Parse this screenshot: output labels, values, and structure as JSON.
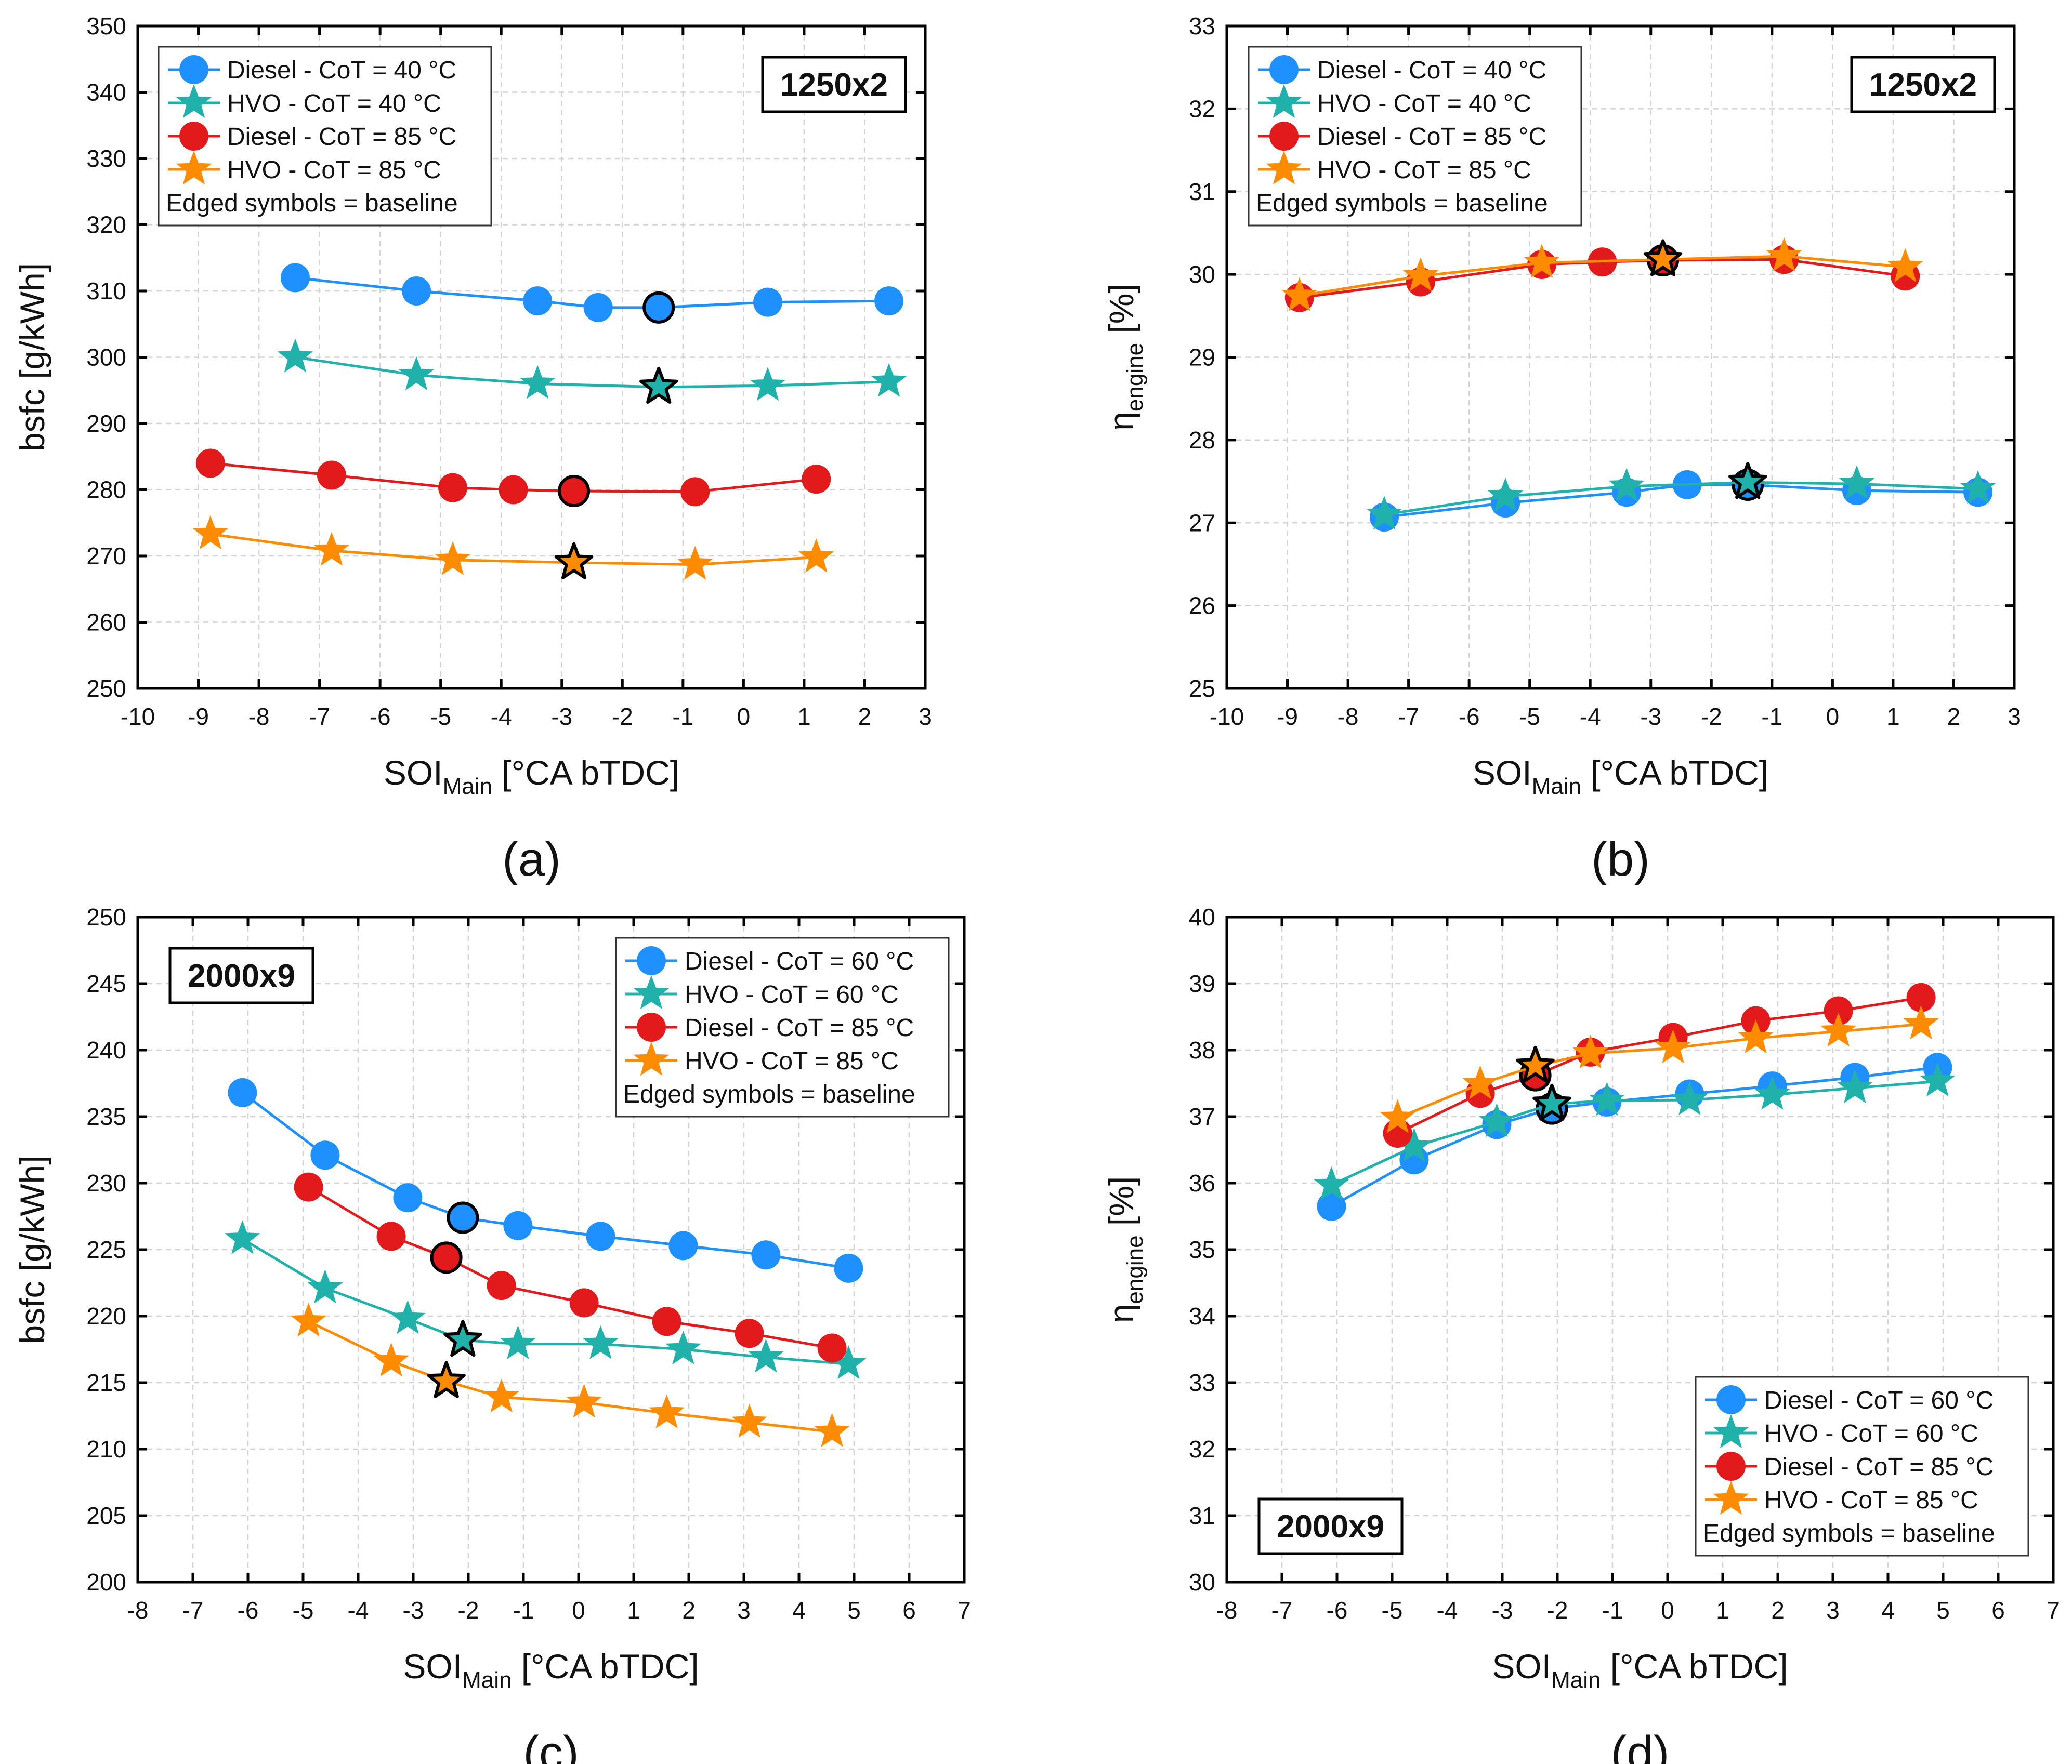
{
  "colors": {
    "diesel_40": "#1e90ff",
    "hvo_40": "#20b2aa",
    "diesel_85": "#e31a1c",
    "hvo_85": "#ff8c00",
    "diesel_60": "#1e90ff",
    "hvo_60": "#20b2aa"
  },
  "chart_data": [
    {
      "id": "a",
      "type": "line",
      "caption": "(a)",
      "tag": "1250x2",
      "ylabel": "bsfc [g/kWh]",
      "xlabel_main": "SOI",
      "xlabel_sub": "Main",
      "xlabel_unit": " [°CA bTDC]",
      "xlim": [
        -10,
        3
      ],
      "ylim": [
        250,
        350
      ],
      "xticks": [
        -10,
        -9,
        -8,
        -7,
        -6,
        -5,
        -4,
        -3,
        -2,
        -1,
        0,
        1,
        2,
        3
      ],
      "yticks": [
        250,
        260,
        270,
        280,
        290,
        300,
        310,
        320,
        330,
        340,
        350
      ],
      "grid": true,
      "legend_position": "top-left",
      "legend_note": "Edged symbols = baseline",
      "series": [
        {
          "name": "Diesel - CoT = 40 °C",
          "marker": "circle",
          "color": "#1e90ff",
          "x": [
            -7.4,
            -5.4,
            -3.4,
            -2.4,
            -1.4,
            0.4,
            2.4
          ],
          "y": [
            312,
            310,
            308.5,
            307.5,
            307.5,
            308.3,
            308.5
          ],
          "baseline_index": 4
        },
        {
          "name": "HVO - CoT = 40 °C",
          "marker": "star",
          "color": "#20b2aa",
          "x": [
            -7.4,
            -5.4,
            -3.4,
            -1.4,
            0.4,
            2.4
          ],
          "y": [
            300,
            297.3,
            296,
            295.5,
            295.7,
            296.3
          ],
          "baseline_index": 3
        },
        {
          "name": "Diesel - CoT = 85 °C",
          "marker": "circle",
          "color": "#e31a1c",
          "x": [
            -8.8,
            -6.8,
            -4.8,
            -3.8,
            -2.8,
            -0.8,
            1.2
          ],
          "y": [
            284,
            282.2,
            280.3,
            280,
            279.8,
            279.7,
            281.6
          ],
          "baseline_index": 4
        },
        {
          "name": "HVO - CoT = 85 °C",
          "marker": "star",
          "color": "#ff8c00",
          "x": [
            -8.8,
            -6.8,
            -4.8,
            -2.8,
            -0.8,
            1.2
          ],
          "y": [
            273.3,
            270.8,
            269.4,
            269,
            268.7,
            269.8
          ],
          "baseline_index": 3
        }
      ]
    },
    {
      "id": "b",
      "type": "line",
      "caption": "(b)",
      "tag": "1250x2",
      "ylabel_main": "η",
      "ylabel_sub": "engine",
      "ylabel_unit": " [%]",
      "xlabel_main": "SOI",
      "xlabel_sub": "Main",
      "xlabel_unit": " [°CA bTDC]",
      "xlim": [
        -10,
        3
      ],
      "ylim": [
        25,
        33
      ],
      "xticks": [
        -10,
        -9,
        -8,
        -7,
        -6,
        -5,
        -4,
        -3,
        -2,
        -1,
        0,
        1,
        2,
        3
      ],
      "yticks": [
        25,
        26,
        27,
        28,
        29,
        30,
        31,
        32,
        33
      ],
      "grid": true,
      "legend_position": "top-left",
      "legend_note": "Edged symbols = baseline",
      "series": [
        {
          "name": "Diesel - CoT = 40 °C",
          "marker": "circle",
          "color": "#1e90ff",
          "x": [
            -7.4,
            -5.4,
            -3.4,
            -2.4,
            -1.4,
            0.4,
            2.4
          ],
          "y": [
            27.07,
            27.24,
            27.37,
            27.46,
            27.46,
            27.39,
            27.37
          ],
          "baseline_index": 4
        },
        {
          "name": "HVO - CoT = 40 °C",
          "marker": "star",
          "color": "#20b2aa",
          "x": [
            -7.4,
            -5.4,
            -3.4,
            -1.4,
            0.4,
            2.4
          ],
          "y": [
            27.1,
            27.32,
            27.44,
            27.49,
            27.47,
            27.41
          ],
          "baseline_index": 3
        },
        {
          "name": "Diesel - CoT = 85 °C",
          "marker": "circle",
          "color": "#e31a1c",
          "x": [
            -8.8,
            -6.8,
            -4.8,
            -3.8,
            -2.8,
            -0.8,
            1.2
          ],
          "y": [
            29.72,
            29.91,
            30.12,
            30.15,
            30.17,
            30.18,
            29.98
          ],
          "baseline_index": 4
        },
        {
          "name": "HVO - CoT = 85 °C",
          "marker": "star",
          "color": "#ff8c00",
          "x": [
            -8.8,
            -6.8,
            -4.8,
            -2.8,
            -0.8,
            1.2
          ],
          "y": [
            29.74,
            29.98,
            30.14,
            30.18,
            30.22,
            30.09
          ],
          "baseline_index": 3
        }
      ]
    },
    {
      "id": "c",
      "type": "line",
      "caption": "(c)",
      "tag": "2000x9",
      "ylabel": "bsfc [g/kWh]",
      "xlabel_main": "SOI",
      "xlabel_sub": "Main",
      "xlabel_unit": " [°CA bTDC]",
      "xlim": [
        -8,
        7
      ],
      "ylim": [
        200,
        250
      ],
      "xticks": [
        -8,
        -7,
        -6,
        -5,
        -4,
        -3,
        -2,
        -1,
        0,
        1,
        2,
        3,
        4,
        5,
        6,
        7
      ],
      "yticks": [
        200,
        205,
        210,
        215,
        220,
        225,
        230,
        235,
        240,
        245,
        250
      ],
      "grid": true,
      "legend_position": "top-right",
      "legend_note": "Edged symbols = baseline",
      "series": [
        {
          "name": "Diesel - CoT = 60 °C",
          "marker": "circle",
          "color": "#1e90ff",
          "x": [
            -6.1,
            -4.6,
            -3.1,
            -2.1,
            -1.1,
            0.4,
            1.9,
            3.4,
            4.9
          ],
          "y": [
            236.8,
            232.1,
            228.9,
            227.4,
            226.8,
            226.0,
            225.3,
            224.6,
            223.6
          ],
          "baseline_index": 3
        },
        {
          "name": "HVO - CoT = 60 °C",
          "marker": "star",
          "color": "#20b2aa",
          "x": [
            -6.1,
            -4.6,
            -3.1,
            -2.1,
            -1.1,
            0.4,
            1.9,
            3.4,
            4.9
          ],
          "y": [
            225.8,
            222.1,
            219.8,
            218.2,
            217.9,
            217.9,
            217.5,
            216.9,
            216.4
          ],
          "baseline_index": 3
        },
        {
          "name": "Diesel - CoT = 85 °C",
          "marker": "circle",
          "color": "#e31a1c",
          "x": [
            -4.9,
            -3.4,
            -2.4,
            -1.4,
            0.1,
            1.6,
            3.1,
            4.6
          ],
          "y": [
            229.7,
            226.0,
            224.4,
            222.3,
            221.0,
            219.6,
            218.7,
            217.6
          ],
          "baseline_index": 2
        },
        {
          "name": "HVO - CoT = 85 °C",
          "marker": "star",
          "color": "#ff8c00",
          "x": [
            -4.9,
            -3.4,
            -2.4,
            -1.4,
            0.1,
            1.6,
            3.1,
            4.6
          ],
          "y": [
            219.6,
            216.6,
            215.1,
            213.9,
            213.5,
            212.7,
            212.0,
            211.3
          ],
          "baseline_index": 2
        }
      ]
    },
    {
      "id": "d",
      "type": "line",
      "caption": "(d)",
      "tag": "2000x9",
      "ylabel_main": "η",
      "ylabel_sub": "engine",
      "ylabel_unit": " [%]",
      "xlabel_main": "SOI",
      "xlabel_sub": "Main",
      "xlabel_unit": " [°CA bTDC]",
      "xlim": [
        -8,
        7
      ],
      "ylim": [
        30,
        40
      ],
      "xticks": [
        -8,
        -7,
        -6,
        -5,
        -4,
        -3,
        -2,
        -1,
        0,
        1,
        2,
        3,
        4,
        5,
        6,
        7
      ],
      "yticks": [
        30,
        31,
        32,
        33,
        34,
        35,
        36,
        37,
        38,
        39,
        40
      ],
      "grid": true,
      "legend_position": "bottom-right",
      "legend_note": "Edged symbols = baseline",
      "series": [
        {
          "name": "Diesel - CoT = 60 °C",
          "marker": "circle",
          "color": "#1e90ff",
          "x": [
            -6.1,
            -4.6,
            -3.1,
            -2.1,
            -1.1,
            0.4,
            1.9,
            3.4,
            4.9
          ],
          "y": [
            35.65,
            36.35,
            36.88,
            37.12,
            37.22,
            37.34,
            37.46,
            37.59,
            37.74
          ],
          "baseline_index": 3
        },
        {
          "name": "HVO - CoT = 60 °C",
          "marker": "star",
          "color": "#20b2aa",
          "x": [
            -6.1,
            -4.6,
            -3.1,
            -2.1,
            -1.1,
            0.4,
            1.9,
            3.4,
            4.9
          ],
          "y": [
            35.97,
            36.55,
            36.92,
            37.19,
            37.24,
            37.25,
            37.33,
            37.43,
            37.53
          ],
          "baseline_index": 3
        },
        {
          "name": "Diesel - CoT = 85 °C",
          "marker": "circle",
          "color": "#e31a1c",
          "x": [
            -4.9,
            -3.4,
            -2.4,
            -1.4,
            0.1,
            1.6,
            3.1,
            4.6
          ],
          "y": [
            36.75,
            37.35,
            37.62,
            37.97,
            38.19,
            38.44,
            38.59,
            38.79
          ],
          "baseline_index": 2
        },
        {
          "name": "HVO - CoT = 85 °C",
          "marker": "star",
          "color": "#ff8c00",
          "x": [
            -4.9,
            -3.4,
            -2.4,
            -1.4,
            0.1,
            1.6,
            3.1,
            4.6
          ],
          "y": [
            36.98,
            37.49,
            37.76,
            37.95,
            38.03,
            38.18,
            38.28,
            38.39
          ],
          "baseline_index": 2
        }
      ]
    }
  ]
}
